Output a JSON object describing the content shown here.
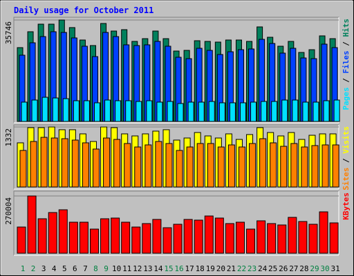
{
  "chart_data": [
    {
      "type": "bar",
      "title": "Daily usage for October 2011",
      "series": [
        {
          "name": "Hits",
          "color": "#00805c",
          "values": [
            26020,
            31620,
            34290,
            34290,
            35746,
            33080,
            28700,
            26750,
            34530,
            31860,
            32350,
            28210,
            29180,
            31860,
            29180,
            24810,
            25050,
            28450,
            28210,
            27970,
            28700,
            28700,
            28210,
            33320,
            29670,
            26510,
            28210,
            24320,
            25290,
            30160,
            29180
          ]
        },
        {
          "name": "Files",
          "color": "#0040ff",
          "values": [
            23350,
            27720,
            29910,
            31620,
            31370,
            29430,
            26510,
            22860,
            31370,
            29910,
            27000,
            26750,
            27000,
            28210,
            26510,
            22620,
            22130,
            25780,
            25050,
            23590,
            24560,
            25290,
            25540,
            28940,
            27480,
            24080,
            25780,
            22370,
            22130,
            27240,
            26020
          ]
        },
        {
          "name": "Pages",
          "color": "#00e0ff",
          "values": [
            6810,
            7540,
            8510,
            8270,
            8030,
            7300,
            7300,
            6570,
            7540,
            7300,
            7300,
            7050,
            7300,
            6810,
            7050,
            6320,
            6810,
            6810,
            7050,
            6570,
            6570,
            6570,
            6810,
            7050,
            7050,
            7540,
            7540,
            6810,
            6810,
            7300,
            7540
          ]
        }
      ],
      "ylim": [
        0,
        35746
      ],
      "yticks": [
        35746
      ],
      "grid": true
    },
    {
      "type": "bar",
      "series": [
        {
          "name": "Visits",
          "color": "#ffff00",
          "values": [
            980,
            1317,
            1317,
            1332,
            1271,
            1271,
            1179,
            1010,
            1332,
            1317,
            1179,
            1133,
            1179,
            1240,
            1271,
            1041,
            1087,
            1209,
            1133,
            1087,
            1179,
            1056,
            1164,
            1317,
            1209,
            1133,
            1209,
            1056,
            1148,
            1179,
            1179
          ]
        },
        {
          "name": "Sites",
          "color": "#ff8000",
          "values": [
            811,
            1010,
            1102,
            1087,
            1072,
            1041,
            980,
            842,
            1087,
            1056,
            965,
            888,
            934,
            1010,
            965,
            811,
            888,
            965,
            965,
            888,
            934,
            888,
            965,
            1072,
            980,
            903,
            965,
            888,
            919,
            934,
            934
          ]
        }
      ],
      "ylim": [
        0,
        1332
      ],
      "yticks": [
        1332
      ],
      "grid": true
    },
    {
      "type": "bar",
      "categories": [
        "1",
        "2",
        "3",
        "4",
        "5",
        "6",
        "7",
        "8",
        "9",
        "10",
        "11",
        "12",
        "13",
        "14",
        "15",
        "16",
        "17",
        "18",
        "19",
        "20",
        "21",
        "22",
        "23",
        "24",
        "25",
        "26",
        "27",
        "28",
        "29",
        "30",
        "31"
      ],
      "category_colors": [
        "#008040",
        "#008040",
        "#000000",
        "#000000",
        "#000000",
        "#000000",
        "#000000",
        "#008040",
        "#008040",
        "#000000",
        "#000000",
        "#000000",
        "#000000",
        "#000000",
        "#008040",
        "#008040",
        "#000000",
        "#000000",
        "#000000",
        "#000000",
        "#000000",
        "#008040",
        "#008040",
        "#000000",
        "#000000",
        "#000000",
        "#000000",
        "#000000",
        "#008040",
        "#008040",
        "#000000"
      ],
      "series": [
        {
          "name": "KBytes",
          "color": "#ff0000",
          "values": [
            123610,
            270004,
            162650,
            191930,
            204940,
            146390,
            146390,
            113860,
            162650,
            165900,
            146390,
            123610,
            139880,
            159400,
            120360,
            136630,
            159400,
            156140,
            175660,
            165900,
            139880,
            146390,
            113860,
            152890,
            139880,
            133370,
            169160,
            149640,
            136630,
            195180,
            143130
          ]
        }
      ],
      "ylim": [
        0,
        270004
      ],
      "yticks": [
        270004
      ],
      "grid": true
    }
  ]
}
